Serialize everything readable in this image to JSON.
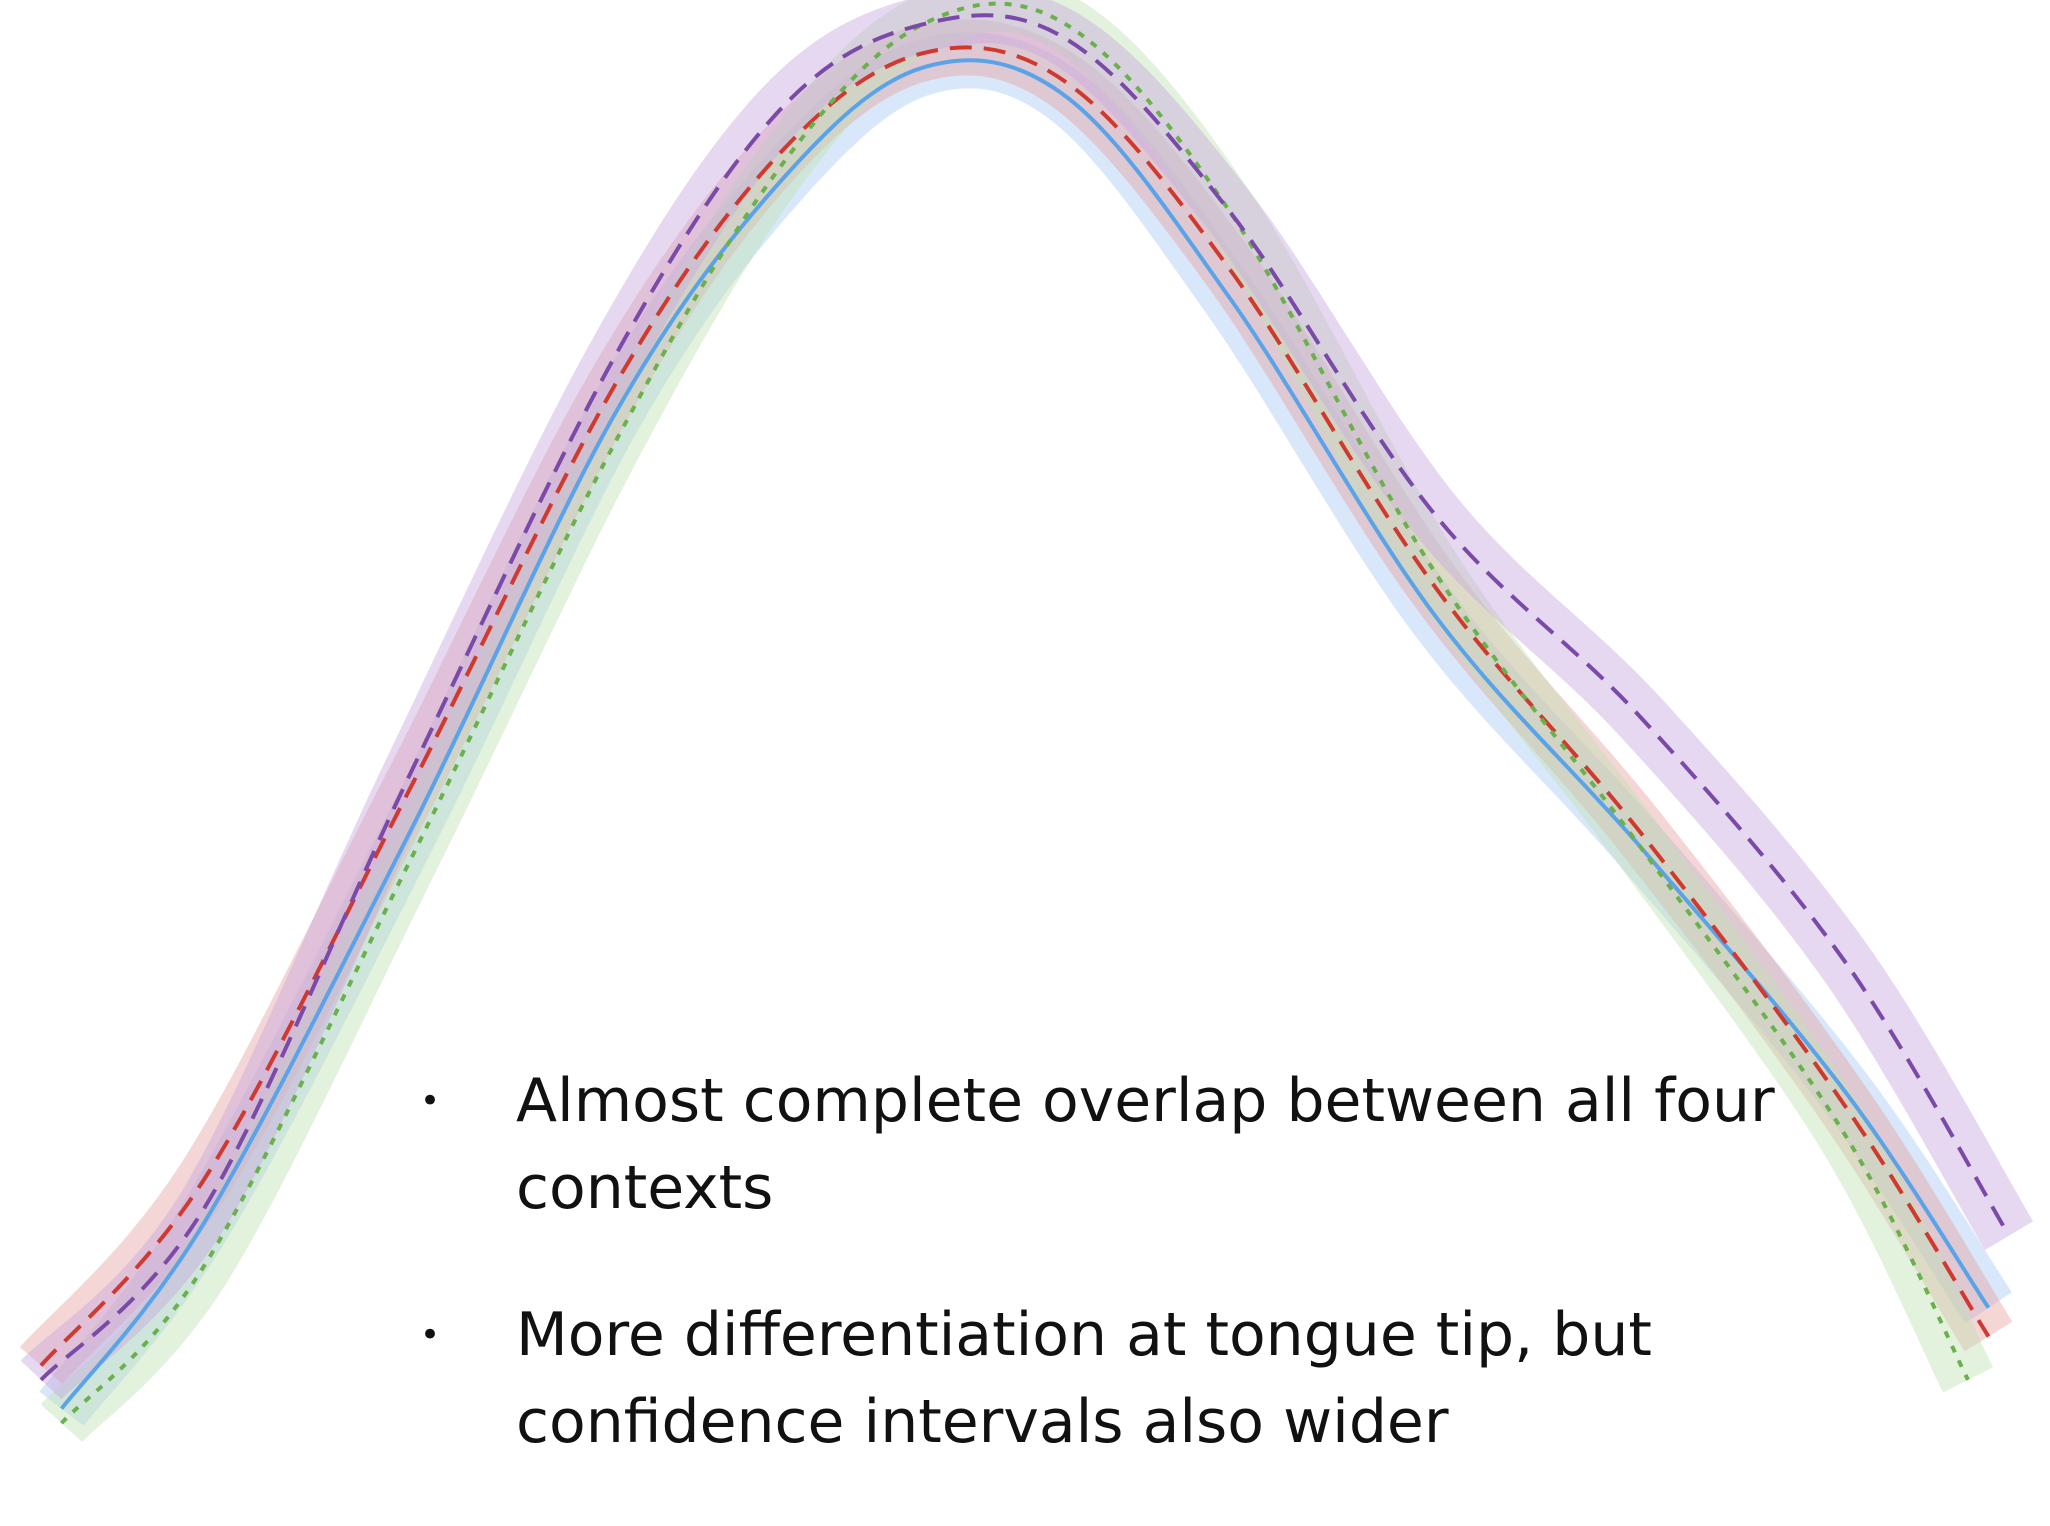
{
  "chart_data": {
    "type": "line",
    "title": "",
    "xlabel": "",
    "ylabel": "",
    "axes_visible": false,
    "grid": false,
    "legend": "none",
    "series": [
      {
        "color": "#5ba3e8",
        "style": "solid",
        "band_color": "#a9cdf5",
        "x": [
          0.03,
          0.1,
          0.2,
          0.3,
          0.38,
          0.45,
          0.52,
          0.6,
          0.7,
          0.8,
          0.9,
          0.97
        ],
        "y": [
          0.03,
          0.16,
          0.43,
          0.72,
          0.88,
          0.96,
          0.94,
          0.8,
          0.58,
          0.42,
          0.25,
          0.1
        ]
      },
      {
        "color": "#d0392e",
        "style": "dashed",
        "band_color": "#e6a3a3",
        "x": [
          0.02,
          0.1,
          0.2,
          0.3,
          0.38,
          0.45,
          0.52,
          0.6,
          0.7,
          0.8,
          0.9,
          0.97
        ],
        "y": [
          0.06,
          0.19,
          0.46,
          0.74,
          0.9,
          0.97,
          0.95,
          0.82,
          0.6,
          0.43,
          0.24,
          0.08
        ]
      },
      {
        "color": "#6ab04c",
        "style": "dotted",
        "band_color": "#c0e2b4",
        "x": [
          0.03,
          0.1,
          0.2,
          0.3,
          0.38,
          0.45,
          0.52,
          0.6,
          0.7,
          0.8,
          0.9,
          0.96
        ],
        "y": [
          0.02,
          0.13,
          0.41,
          0.7,
          0.89,
          0.99,
          0.99,
          0.86,
          0.61,
          0.42,
          0.22,
          0.05
        ]
      },
      {
        "color": "#7b4aa8",
        "style": "dashed",
        "band_color": "#c8a9de",
        "x": [
          0.02,
          0.1,
          0.2,
          0.3,
          0.38,
          0.45,
          0.52,
          0.6,
          0.7,
          0.8,
          0.9,
          0.98
        ],
        "y": [
          0.05,
          0.17,
          0.47,
          0.76,
          0.93,
          0.99,
          0.98,
          0.86,
          0.65,
          0.51,
          0.34,
          0.15
        ]
      }
    ]
  },
  "bullets": [
    "Almost complete overlap between all four contexts",
    "More differentiation at tongue tip, but confidence intervals also wider"
  ],
  "bullet_marker": "•"
}
